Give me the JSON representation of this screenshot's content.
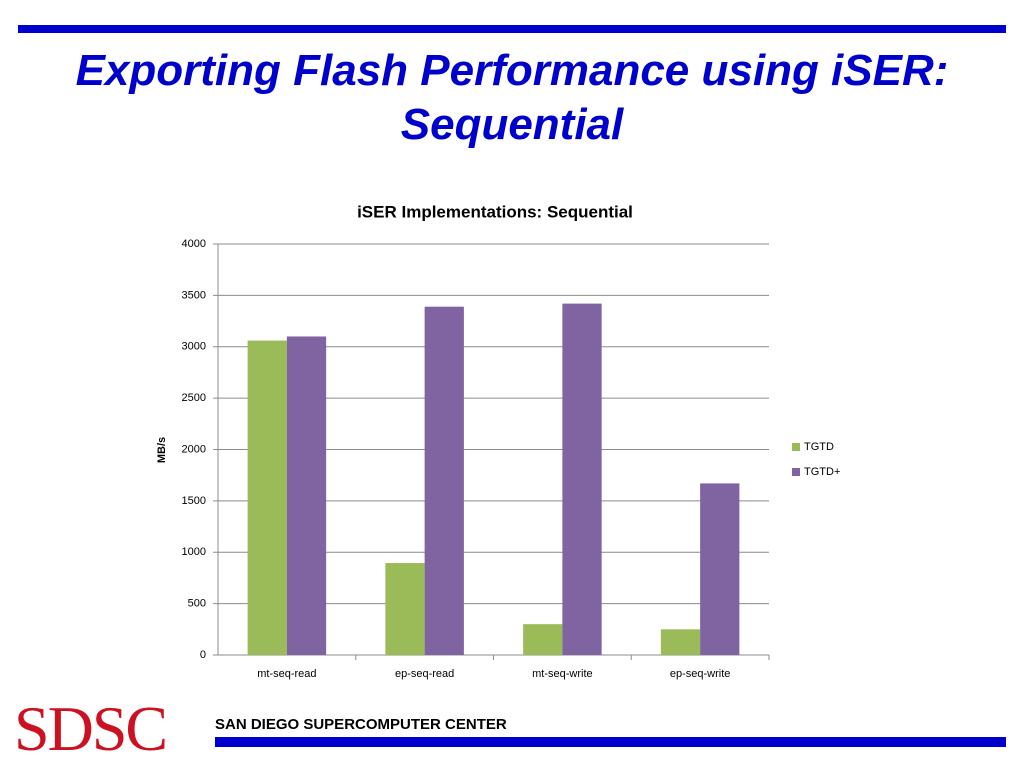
{
  "slide": {
    "title": "Exporting Flash Performance using iSER: Sequential",
    "logo": "SDSC",
    "footer": "SAN DIEGO SUPERCOMPUTER CENTER"
  },
  "chart_data": {
    "type": "bar",
    "title": "iSER Implementations: Sequential",
    "y_label": "MB/s",
    "categories": [
      "mt-seq-read",
      "ep-seq-read",
      "mt-seq-write",
      "ep-seq-write"
    ],
    "series": [
      {
        "name": "TGTD",
        "color": "#9bbb59",
        "values": [
          3060,
          895,
          300,
          250
        ]
      },
      {
        "name": "TGTD+",
        "color": "#8064a2",
        "values": [
          3100,
          3390,
          3420,
          1670
        ]
      }
    ],
    "ylim": [
      0,
      4000
    ],
    "yticks": [
      0,
      500,
      1000,
      1500,
      2000,
      2500,
      3000,
      3500,
      4000
    ],
    "grid": true,
    "legend": "right"
  }
}
